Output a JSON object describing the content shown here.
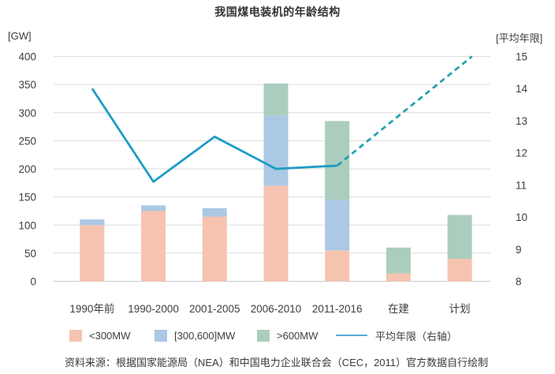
{
  "title": "我国煤电装机的年龄结构",
  "left_axis_label": "[GW]",
  "right_axis_label": "[平均年限]",
  "source": "资料来源：根据国家能源局（NEA）和中国电力企业联合会（CEC，2011）官方数据自行绘制",
  "colors": {
    "bar_small": "#F6C3B0",
    "bar_mid": "#ABC8E4",
    "bar_large": "#ABCDBE",
    "line": "#1E9CC5",
    "line_dashed": "#22A3B1",
    "legend_line": "#58ACDC",
    "grid": "#DBDBDB",
    "axis": "#C9C9C9",
    "text": "#3E3E3E"
  },
  "legend": [
    {
      "label": "<300MW",
      "marker": "square",
      "color_key": "bar_small"
    },
    {
      "label": "[300,600]MW",
      "marker": "square",
      "color_key": "bar_mid"
    },
    {
      "label": ">600MW",
      "marker": "square",
      "color_key": "bar_large"
    },
    {
      "label": "平均年限（右轴）",
      "marker": "line",
      "color_key": "legend_line"
    }
  ],
  "chart_data": {
    "type": "bar",
    "subtype": "stacked-bars-with-line",
    "title": "我国煤电装机的年龄结构",
    "categories": [
      "1990年前",
      "1990-2000",
      "2001-2005",
      "2006-2010",
      "2011-2016",
      "在建",
      "计划"
    ],
    "series": [
      {
        "name": "<300MW",
        "type": "bar",
        "color_key": "bar_small",
        "values": [
          100,
          125,
          115,
          170,
          55,
          14,
          40
        ]
      },
      {
        "name": "[300,600]MW",
        "type": "bar",
        "color_key": "bar_mid",
        "values": [
          10,
          10,
          15,
          125,
          90,
          0,
          0
        ]
      },
      {
        "name": ">600MW",
        "type": "bar",
        "color_key": "bar_large",
        "values": [
          0,
          0,
          0,
          57,
          140,
          46,
          78
        ]
      },
      {
        "name": "平均年限（右轴）",
        "type": "line",
        "axis": "right",
        "color_key": "line",
        "values": [
          14.0,
          11.1,
          12.5,
          11.5,
          11.6,
          null,
          null
        ],
        "dashed_projection": {
          "from_index": 4,
          "from_value": 11.6,
          "to_index": 6.2,
          "to_value": 15.0
        }
      }
    ],
    "left_axis": {
      "label": "[GW]",
      "min": 0,
      "max": 400,
      "step": 50
    },
    "right_axis": {
      "label": "[平均年限]",
      "min": 8,
      "max": 15,
      "step": 1
    },
    "grid": "horizontal",
    "legend_position": "bottom",
    "bar_totals": [
      110,
      135,
      130,
      352,
      285,
      60,
      118
    ]
  }
}
